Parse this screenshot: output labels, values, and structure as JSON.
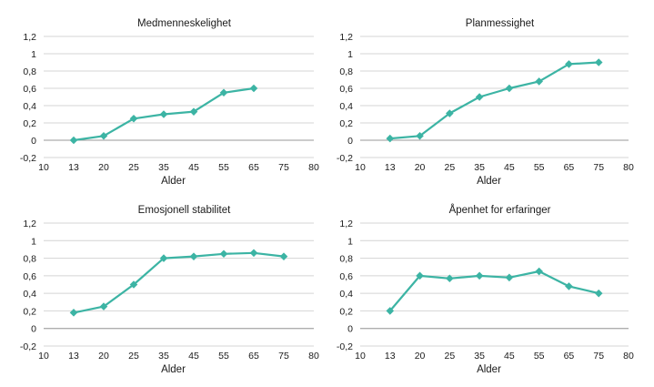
{
  "chart_data": [
    {
      "type": "line",
      "title": "Medmenneskelighet",
      "xlabel": "Alder",
      "ylabel": "",
      "xlim": [
        10,
        80
      ],
      "ylim": [
        -0.2,
        1.2
      ],
      "x_ticks": [
        "10",
        "13",
        "20",
        "25",
        "35",
        "45",
        "55",
        "65",
        "75",
        "80"
      ],
      "y_ticks": [
        "-0,2",
        "0",
        "0,2",
        "0,4",
        "0,6",
        "0,8",
        "1",
        "1,2"
      ],
      "grid": true,
      "series": [
        {
          "x": [
            13,
            20,
            25,
            35,
            45,
            55,
            65
          ],
          "values": [
            0.0,
            0.05,
            0.25,
            0.3,
            0.33,
            0.55,
            0.6
          ]
        }
      ]
    },
    {
      "type": "line",
      "title": "Planmessighet",
      "xlabel": "Alder",
      "ylabel": "",
      "xlim": [
        10,
        80
      ],
      "ylim": [
        -0.2,
        1.2
      ],
      "x_ticks": [
        "10",
        "13",
        "20",
        "25",
        "35",
        "45",
        "55",
        "65",
        "75",
        "80"
      ],
      "y_ticks": [
        "-0,2",
        "0",
        "0,2",
        "0,4",
        "0,6",
        "0,8",
        "1",
        "1,2"
      ],
      "grid": true,
      "series": [
        {
          "x": [
            13,
            20,
            25,
            35,
            45,
            55,
            65,
            75
          ],
          "values": [
            0.02,
            0.05,
            0.31,
            0.5,
            0.6,
            0.68,
            0.88,
            0.9
          ]
        }
      ]
    },
    {
      "type": "line",
      "title": "Emosjonell stabilitet",
      "xlabel": "Alder",
      "ylabel": "",
      "xlim": [
        10,
        80
      ],
      "ylim": [
        -0.2,
        1.2
      ],
      "x_ticks": [
        "10",
        "13",
        "20",
        "25",
        "35",
        "45",
        "55",
        "65",
        "75",
        "80"
      ],
      "y_ticks": [
        "-0,2",
        "0",
        "0,2",
        "0,4",
        "0,6",
        "0,8",
        "1",
        "1,2"
      ],
      "grid": true,
      "series": [
        {
          "x": [
            13,
            20,
            25,
            35,
            45,
            55,
            65,
            75
          ],
          "values": [
            0.18,
            0.25,
            0.5,
            0.8,
            0.82,
            0.85,
            0.86,
            0.82
          ]
        }
      ]
    },
    {
      "type": "line",
      "title": "Åpenhet for erfaringer",
      "xlabel": "Alder",
      "ylabel": "",
      "xlim": [
        10,
        80
      ],
      "ylim": [
        -0.2,
        1.2
      ],
      "x_ticks": [
        "10",
        "13",
        "20",
        "25",
        "35",
        "45",
        "55",
        "65",
        "75",
        "80"
      ],
      "y_ticks": [
        "-0,2",
        "0",
        "0,2",
        "0,4",
        "0,6",
        "0,8",
        "1",
        "1,2"
      ],
      "grid": true,
      "series": [
        {
          "x": [
            13,
            20,
            25,
            35,
            45,
            55,
            65,
            75
          ],
          "values": [
            0.2,
            0.6,
            0.57,
            0.6,
            0.58,
            0.65,
            0.48,
            0.4
          ]
        }
      ]
    }
  ],
  "colors": {
    "series": "#3cb4a4",
    "grid": "#d4d4d4",
    "axis": "#9a9a9a",
    "text": "#1a1a1a"
  }
}
